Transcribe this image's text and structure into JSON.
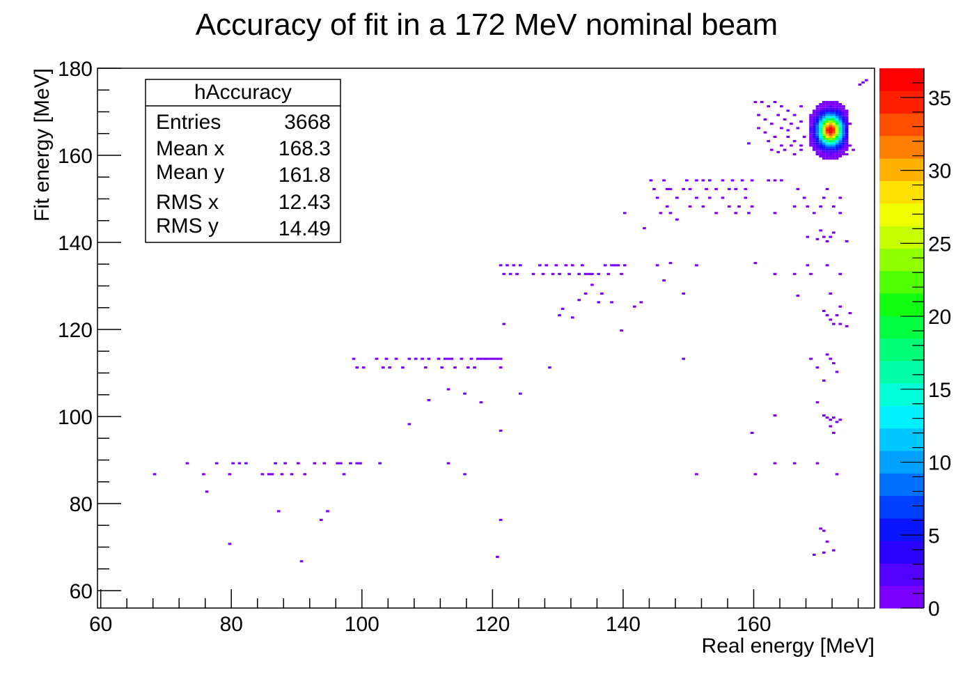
{
  "chart_data": {
    "type": "heatmap",
    "title": "Accuracy of fit in a 172 MeV nominal beam",
    "xlabel": "Real energy [MeV]",
    "ylabel": "Fit energy [MeV]",
    "xlim": [
      59.5,
      178.5
    ],
    "ylim": [
      56,
      180
    ],
    "xticks": [
      60,
      80,
      100,
      120,
      140,
      160
    ],
    "yticks": [
      60,
      80,
      100,
      120,
      140,
      160,
      180
    ],
    "bin_width_x": 0.5,
    "bin_height_y": 0.5,
    "z_range": [
      0,
      37
    ],
    "z_ticks": [
      0,
      5,
      10,
      15,
      20,
      25,
      30,
      35
    ],
    "palette": [
      "#7b00ff",
      "#5200ff",
      "#2a00ff",
      "#0a14ff",
      "#0040ff",
      "#0070ff",
      "#00a0ff",
      "#00c8ff",
      "#00f0ff",
      "#00ffd8",
      "#00ffa8",
      "#00ff78",
      "#00ff40",
      "#10ff10",
      "#50ff00",
      "#90ff00",
      "#c8ff00",
      "#f0ff00",
      "#ffe000",
      "#ffb000",
      "#ff8000",
      "#ff5000",
      "#ff2000",
      "#ff0000"
    ],
    "stats_box": {
      "name": "hAccuracy",
      "rows": [
        {
          "label": "Entries",
          "value": "3668"
        },
        {
          "label": "Mean x",
          "value": "168.3"
        },
        {
          "label": "Mean y",
          "value": "161.8"
        },
        {
          "label": "RMS x",
          "value": "12.43"
        },
        {
          "label": "RMS y",
          "value": "14.49"
        }
      ]
    },
    "core_peak": {
      "x": 171.5,
      "y": 165.5,
      "z_max": 37,
      "sigma_x": 1.2,
      "sigma_y": 2.2,
      "x_range": [
        168.5,
        174.0
      ],
      "y_range": [
        158.0,
        172.0
      ]
    },
    "scatter_bins": [
      [
        68,
        86.5
      ],
      [
        73,
        89
      ],
      [
        75.5,
        86.5
      ],
      [
        77.5,
        89
      ],
      [
        79.5,
        86.5
      ],
      [
        80,
        89
      ],
      [
        81,
        89
      ],
      [
        82,
        89
      ],
      [
        84.5,
        86.5
      ],
      [
        85.5,
        86.5
      ],
      [
        86,
        86.5
      ],
      [
        86.5,
        89
      ],
      [
        87.5,
        86.5
      ],
      [
        88,
        89
      ],
      [
        89,
        86.5
      ],
      [
        90,
        89
      ],
      [
        91,
        86.5
      ],
      [
        92.5,
        89
      ],
      [
        94,
        89
      ],
      [
        96,
        89
      ],
      [
        96.5,
        89
      ],
      [
        97,
        86.5
      ],
      [
        98,
        89
      ],
      [
        99,
        89
      ],
      [
        99.5,
        89
      ],
      [
        102.5,
        89
      ],
      [
        113,
        89
      ],
      [
        115.5,
        86.5
      ],
      [
        76,
        82.5
      ],
      [
        87,
        78
      ],
      [
        93.5,
        76
      ],
      [
        94.5,
        78
      ],
      [
        79.5,
        70.5
      ],
      [
        90.5,
        66.5
      ],
      [
        120.5,
        67.5
      ],
      [
        121,
        76
      ],
      [
        107,
        98
      ],
      [
        110,
        103.5
      ],
      [
        113,
        106
      ],
      [
        115.5,
        105
      ],
      [
        118,
        103
      ],
      [
        121,
        96.5
      ],
      [
        98.5,
        113
      ],
      [
        99,
        111
      ],
      [
        100,
        111
      ],
      [
        102,
        113
      ],
      [
        103,
        111
      ],
      [
        103.5,
        113
      ],
      [
        104,
        111
      ],
      [
        105,
        113
      ],
      [
        106,
        111
      ],
      [
        107,
        113
      ],
      [
        108,
        113
      ],
      [
        109,
        113
      ],
      [
        109.5,
        111
      ],
      [
        110,
        113
      ],
      [
        111.5,
        113
      ],
      [
        112,
        111
      ],
      [
        112.5,
        113
      ],
      [
        113,
        113
      ],
      [
        113.5,
        113
      ],
      [
        114,
        111
      ],
      [
        115,
        113
      ],
      [
        116,
        111
      ],
      [
        116.5,
        113
      ],
      [
        117,
        111
      ],
      [
        117.5,
        113
      ],
      [
        118,
        113
      ],
      [
        118.5,
        113
      ],
      [
        119,
        113
      ],
      [
        119.5,
        113
      ],
      [
        120,
        113
      ],
      [
        120.5,
        113
      ],
      [
        121,
        113
      ],
      [
        121,
        111
      ],
      [
        128.5,
        111
      ],
      [
        124,
        105
      ],
      [
        121.5,
        121
      ],
      [
        121,
        134.5
      ],
      [
        121.5,
        132.5
      ],
      [
        122,
        134.5
      ],
      [
        122.5,
        132.5
      ],
      [
        123,
        134.5
      ],
      [
        123.5,
        132.5
      ],
      [
        124,
        134.5
      ],
      [
        126,
        132.5
      ],
      [
        127,
        134.5
      ],
      [
        127.5,
        132.5
      ],
      [
        128,
        134.5
      ],
      [
        129,
        132.5
      ],
      [
        129.5,
        134.5
      ],
      [
        130,
        132.5
      ],
      [
        131,
        134.5
      ],
      [
        131.5,
        132.5
      ],
      [
        132,
        134.5
      ],
      [
        133,
        132.5
      ],
      [
        133.5,
        134.5
      ],
      [
        134,
        132.5
      ],
      [
        134.5,
        132.5
      ],
      [
        135,
        132.5
      ],
      [
        135,
        130
      ],
      [
        136,
        132.5
      ],
      [
        137,
        134.5
      ],
      [
        137.5,
        132.5
      ],
      [
        138,
        134.5
      ],
      [
        138.5,
        134.5
      ],
      [
        139,
        134.5
      ],
      [
        139.5,
        132.5
      ],
      [
        140,
        134.5
      ],
      [
        134,
        128
      ],
      [
        133,
        126.5
      ],
      [
        136,
        126
      ],
      [
        136.5,
        128
      ],
      [
        138,
        126
      ],
      [
        130.5,
        124.5
      ],
      [
        130,
        123
      ],
      [
        132,
        122.5
      ],
      [
        139.5,
        119.5
      ],
      [
        141.5,
        125
      ],
      [
        142.5,
        126
      ],
      [
        143,
        143
      ],
      [
        140,
        146.5
      ],
      [
        144,
        154
      ],
      [
        144.5,
        152
      ],
      [
        146,
        154
      ],
      [
        146.5,
        152
      ],
      [
        147,
        152
      ],
      [
        148,
        150
      ],
      [
        149,
        152
      ],
      [
        149.5,
        154
      ],
      [
        150,
        152
      ],
      [
        151,
        154
      ],
      [
        152,
        154
      ],
      [
        152.5,
        152
      ],
      [
        153,
        154
      ],
      [
        154,
        152
      ],
      [
        155,
        154
      ],
      [
        156,
        152
      ],
      [
        156.5,
        154
      ],
      [
        157,
        152
      ],
      [
        158,
        154
      ],
      [
        158.5,
        152
      ],
      [
        159.5,
        154
      ],
      [
        162,
        154
      ],
      [
        163,
        154
      ],
      [
        164,
        154
      ],
      [
        145,
        150
      ],
      [
        146.5,
        148
      ],
      [
        145.5,
        146.5
      ],
      [
        147,
        146.5
      ],
      [
        148,
        145
      ],
      [
        150,
        148
      ],
      [
        151,
        150
      ],
      [
        152,
        148
      ],
      [
        153,
        150
      ],
      [
        154,
        146.5
      ],
      [
        155,
        150
      ],
      [
        156,
        148
      ],
      [
        157,
        146.5
      ],
      [
        157.5,
        148
      ],
      [
        158.5,
        150
      ],
      [
        159,
        146.5
      ],
      [
        159.5,
        148
      ],
      [
        163,
        146.5
      ],
      [
        166.5,
        152
      ],
      [
        167.5,
        150
      ],
      [
        166,
        148
      ],
      [
        168,
        148
      ],
      [
        169,
        146.5
      ],
      [
        170,
        148
      ],
      [
        170.5,
        150
      ],
      [
        171,
        152
      ],
      [
        172,
        148
      ],
      [
        173,
        146.5
      ],
      [
        173,
        150
      ],
      [
        168,
        141
      ],
      [
        169.5,
        140.5
      ],
      [
        170,
        142.5
      ],
      [
        170.5,
        141
      ],
      [
        171,
        140
      ],
      [
        171.5,
        141
      ],
      [
        172,
        142
      ],
      [
        174,
        140
      ],
      [
        168,
        134.5
      ],
      [
        168.5,
        132.5
      ],
      [
        171,
        134.5
      ],
      [
        173,
        132.5
      ],
      [
        171.5,
        128
      ],
      [
        170.5,
        124
      ],
      [
        171,
        123
      ],
      [
        171.5,
        122
      ],
      [
        172,
        121
      ],
      [
        172.5,
        123
      ],
      [
        173,
        121
      ],
      [
        174,
        120.5
      ],
      [
        174.5,
        123.5
      ],
      [
        173,
        125
      ],
      [
        168.5,
        113
      ],
      [
        169.5,
        111
      ],
      [
        171,
        114
      ],
      [
        171.5,
        113
      ],
      [
        172,
        112
      ],
      [
        172.5,
        110
      ],
      [
        170.5,
        108
      ],
      [
        169.5,
        103
      ],
      [
        170.5,
        100
      ],
      [
        171,
        99.5
      ],
      [
        171.5,
        99
      ],
      [
        172,
        99.5
      ],
      [
        172.5,
        98.5
      ],
      [
        173,
        99
      ],
      [
        171.5,
        97.5
      ],
      [
        172,
        96
      ],
      [
        163,
        89
      ],
      [
        166,
        89
      ],
      [
        169.5,
        89
      ],
      [
        172.5,
        86.5
      ],
      [
        160,
        86.5
      ],
      [
        151,
        86.5
      ],
      [
        149,
        113
      ],
      [
        166,
        132.5
      ],
      [
        163,
        132.5
      ],
      [
        160,
        135
      ],
      [
        166.5,
        127.5
      ],
      [
        149,
        128
      ],
      [
        147,
        135
      ],
      [
        145,
        134.5
      ],
      [
        151,
        134.5
      ],
      [
        146,
        131
      ],
      [
        159.5,
        96
      ],
      [
        163,
        100
      ],
      [
        170,
        74
      ],
      [
        171,
        71
      ],
      [
        172,
        69
      ],
      [
        170.5,
        68.5
      ],
      [
        169,
        68
      ],
      [
        170.5,
        73.5
      ],
      [
        176,
        176
      ],
      [
        176.5,
        176.5
      ],
      [
        177,
        177
      ],
      [
        160,
        172
      ],
      [
        161,
        172
      ],
      [
        162,
        171
      ],
      [
        163,
        172
      ],
      [
        164,
        171
      ],
      [
        165,
        170
      ],
      [
        166,
        169
      ],
      [
        167,
        171
      ],
      [
        160.5,
        169
      ],
      [
        161.5,
        168
      ],
      [
        162.5,
        167
      ],
      [
        163.5,
        169
      ],
      [
        164.5,
        168
      ],
      [
        165.5,
        167
      ],
      [
        166.5,
        166
      ],
      [
        167,
        167.5
      ],
      [
        160.5,
        166
      ],
      [
        161.5,
        165
      ],
      [
        162,
        163
      ],
      [
        163,
        164
      ],
      [
        164,
        162
      ],
      [
        165,
        164
      ],
      [
        166,
        163
      ],
      [
        167,
        162
      ],
      [
        167.5,
        164
      ],
      [
        162.5,
        161
      ],
      [
        163.5,
        160.5
      ],
      [
        164.5,
        161
      ],
      [
        165.5,
        162
      ],
      [
        166,
        160
      ],
      [
        167,
        161
      ],
      [
        159,
        162.5
      ],
      [
        164,
        166
      ],
      [
        165,
        165.5
      ],
      [
        174,
        160
      ],
      [
        174.5,
        162
      ],
      [
        175,
        161
      ],
      [
        174,
        165
      ],
      [
        174.5,
        167
      ]
    ]
  }
}
